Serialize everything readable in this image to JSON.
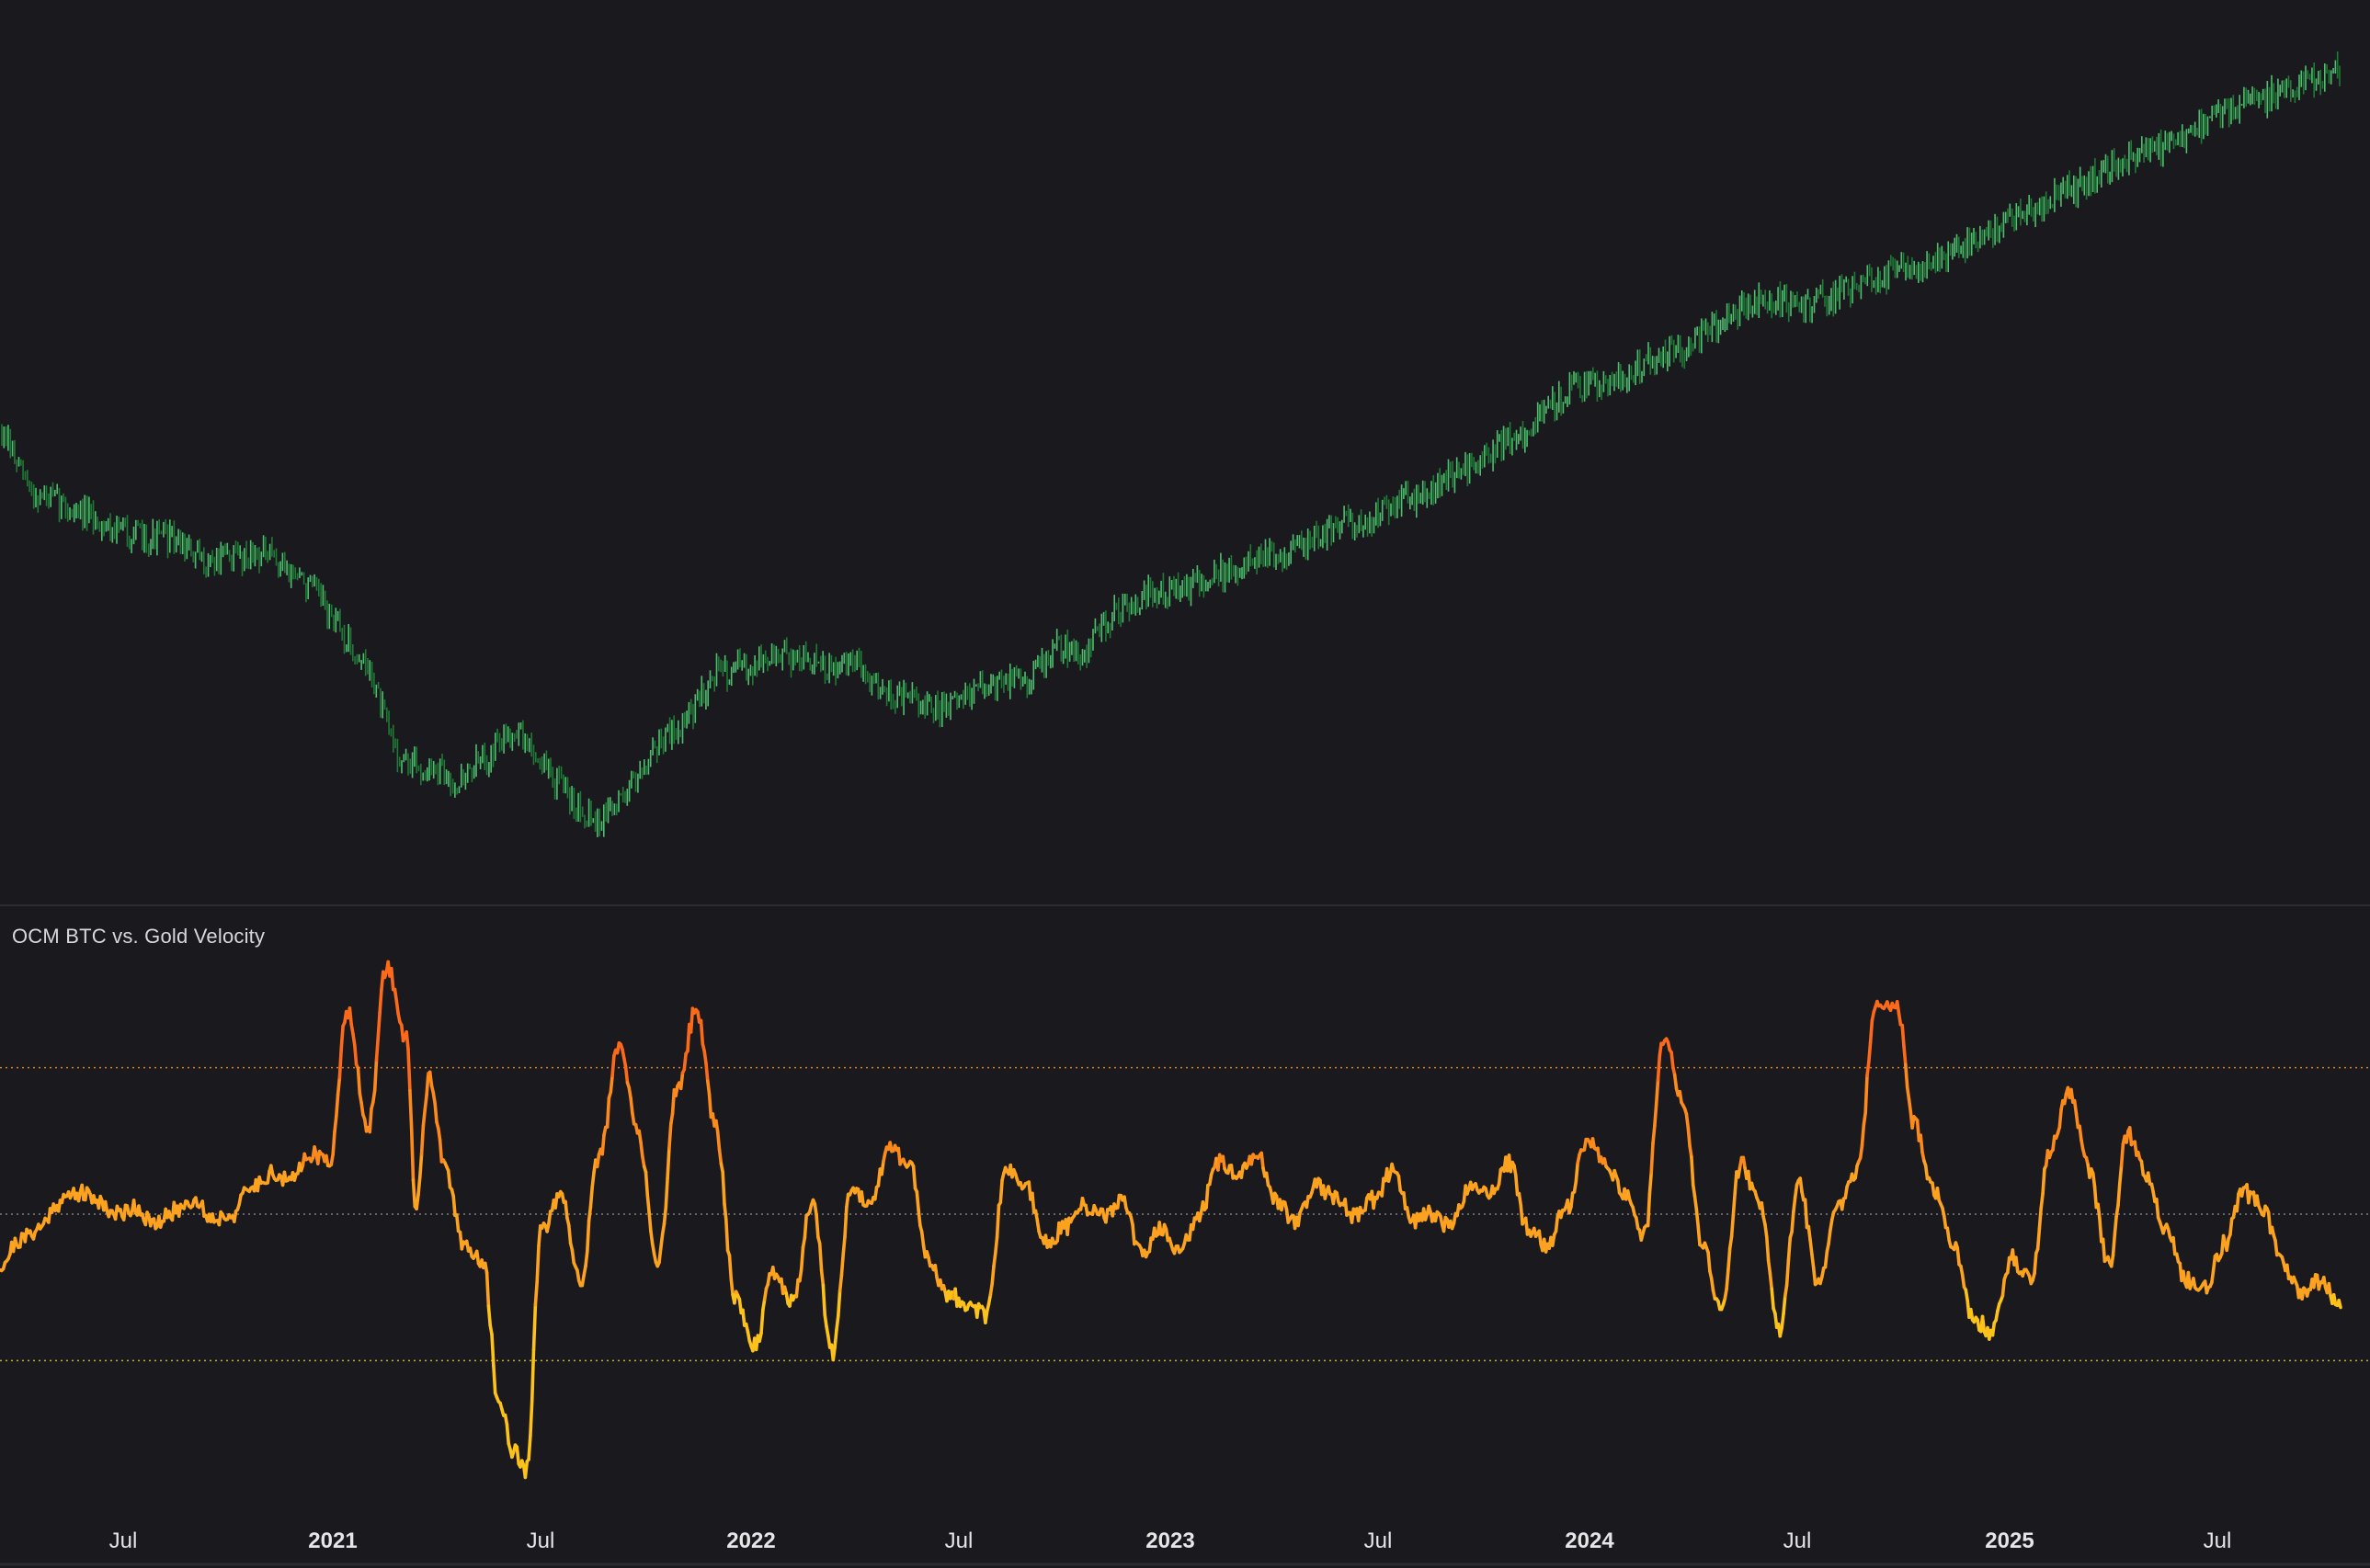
{
  "indicator": {
    "title": "OCM BTC vs. Gold Velocity"
  },
  "colors": {
    "background": "#1a1a1e",
    "price_up": "#4fbf6f",
    "price_down": "#1f7a35",
    "velocity_high": "#ff6a1a",
    "velocity_mid": "#ffa21f",
    "velocity_low": "#ffc21a",
    "upper_band": "#e88a2a",
    "mid_band": "#8a8a8e",
    "lower_band": "#d9c23a",
    "axis_text": "#e6e6e9",
    "pane_divider": "#2c2c31"
  },
  "chart_data": [
    {
      "type": "line",
      "title": "",
      "series": [
        {
          "values": [
            [
              0.0,
              0.7
            ],
            [
              0.02,
              0.58
            ],
            [
              0.04,
              0.56
            ],
            [
              0.06,
              0.53
            ],
            [
              0.08,
              0.51
            ],
            [
              0.1,
              0.49
            ],
            [
              0.12,
              0.49
            ],
            [
              0.14,
              0.44
            ],
            [
              0.16,
              0.45
            ],
            [
              0.18,
              0.46
            ],
            [
              0.2,
              0.43
            ],
            [
              0.22,
              0.38
            ],
            [
              0.24,
              0.29
            ],
            [
              0.26,
              0.21
            ],
            [
              0.27,
              0.11
            ],
            [
              0.28,
              0.04
            ],
            [
              0.3,
              0.02
            ],
            [
              0.32,
              0.0
            ],
            [
              0.34,
              0.05
            ],
            [
              0.36,
              0.11
            ],
            [
              0.38,
              0.03
            ],
            [
              0.4,
              -0.04
            ],
            [
              0.42,
              -0.08
            ],
            [
              0.44,
              -0.01
            ],
            [
              0.46,
              0.08
            ],
            [
              0.48,
              0.12
            ],
            [
              0.5,
              0.22
            ],
            [
              0.52,
              0.23
            ],
            [
              0.54,
              0.25
            ],
            [
              0.56,
              0.25
            ],
            [
              0.58,
              0.22
            ],
            [
              0.6,
              0.24
            ],
            [
              0.62,
              0.18
            ],
            [
              0.64,
              0.16
            ],
            [
              0.66,
              0.14
            ],
            [
              0.68,
              0.18
            ],
            [
              0.7,
              0.2
            ],
            [
              0.72,
              0.21
            ],
            [
              0.74,
              0.27
            ],
            [
              0.76,
              0.26
            ],
            [
              0.78,
              0.34
            ],
            [
              0.8,
              0.37
            ],
            [
              0.82,
              0.38
            ],
            [
              0.84,
              0.4
            ],
            [
              0.86,
              0.42
            ],
            [
              0.88,
              0.45
            ],
            [
              0.9,
              0.46
            ],
            [
              0.92,
              0.48
            ],
            [
              0.94,
              0.52
            ],
            [
              0.96,
              0.53
            ],
            [
              0.98,
              0.56
            ],
            [
              1.0,
              0.58
            ],
            [
              1.02,
              0.62
            ],
            [
              1.04,
              0.65
            ],
            [
              1.06,
              0.69
            ],
            [
              1.08,
              0.73
            ],
            [
              1.1,
              0.79
            ],
            [
              1.12,
              0.8
            ],
            [
              1.14,
              0.82
            ],
            [
              1.16,
              0.85
            ],
            [
              1.18,
              0.87
            ],
            [
              1.2,
              0.91
            ],
            [
              1.22,
              0.95
            ],
            [
              1.24,
              0.97
            ],
            [
              1.26,
              0.96
            ],
            [
              1.28,
              0.97
            ],
            [
              1.3,
              0.99
            ],
            [
              1.32,
              1.02
            ],
            [
              1.34,
              1.04
            ],
            [
              1.36,
              1.05
            ],
            [
              1.38,
              1.08
            ],
            [
              1.4,
              1.11
            ],
            [
              1.42,
              1.14
            ],
            [
              1.44,
              1.18
            ],
            [
              1.46,
              1.2
            ],
            [
              1.48,
              1.23
            ],
            [
              1.5,
              1.26
            ],
            [
              1.52,
              1.28
            ],
            [
              1.54,
              1.31
            ],
            [
              1.56,
              1.35
            ],
            [
              1.58,
              1.37
            ],
            [
              1.6,
              1.39
            ],
            [
              1.62,
              1.41
            ],
            [
              1.64,
              1.43
            ]
          ]
        }
      ]
    },
    {
      "type": "line",
      "title": "OCM BTC vs. Gold Velocity",
      "x_tick_labels": [
        "Jul",
        "2021",
        "Jul",
        "2022",
        "Jul",
        "2023",
        "Jul",
        "2024",
        "Jul",
        "2025",
        "Jul"
      ],
      "x_tick_bold": [
        false,
        true,
        false,
        true,
        false,
        true,
        false,
        true,
        false,
        true,
        false
      ],
      "reference_lines": [
        {
          "name": "upper",
          "value": 1.0
        },
        {
          "name": "mid",
          "value": 0.0
        },
        {
          "name": "lower",
          "value": -1.0
        }
      ],
      "ylim": [
        -1.75,
        1.7
      ],
      "series": [
        {
          "values": [
            [
              0.0,
              -0.35
            ],
            [
              0.01,
              -0.18
            ],
            [
              0.02,
              -0.1
            ],
            [
              0.03,
              0.08
            ],
            [
              0.04,
              0.15
            ],
            [
              0.05,
              0.1
            ],
            [
              0.06,
              0.0
            ],
            [
              0.07,
              0.05
            ],
            [
              0.08,
              -0.08
            ],
            [
              0.09,
              0.02
            ],
            [
              0.1,
              0.1
            ],
            [
              0.11,
              -0.03
            ],
            [
              0.12,
              0.0
            ],
            [
              0.13,
              0.18
            ],
            [
              0.14,
              0.28
            ],
            [
              0.15,
              0.22
            ],
            [
              0.16,
              0.42
            ],
            [
              0.17,
              0.35
            ],
            [
              0.18,
              1.4
            ],
            [
              0.19,
              0.55
            ],
            [
              0.2,
              1.7
            ],
            [
              0.21,
              1.2
            ],
            [
              0.215,
              0.05
            ],
            [
              0.222,
              0.95
            ],
            [
              0.23,
              0.3
            ],
            [
              0.24,
              -0.2
            ],
            [
              0.25,
              -0.35
            ],
            [
              0.258,
              -1.3
            ],
            [
              0.266,
              -1.62
            ],
            [
              0.272,
              -1.75
            ],
            [
              0.28,
              -0.1
            ],
            [
              0.29,
              0.1
            ],
            [
              0.3,
              -0.45
            ],
            [
              0.31,
              0.4
            ],
            [
              0.32,
              1.15
            ],
            [
              0.33,
              0.55
            ],
            [
              0.34,
              -0.35
            ],
            [
              0.35,
              0.85
            ],
            [
              0.36,
              1.4
            ],
            [
              0.37,
              0.6
            ],
            [
              0.38,
              -0.55
            ],
            [
              0.39,
              -0.9
            ],
            [
              0.4,
              -0.4
            ],
            [
              0.41,
              -0.6
            ],
            [
              0.42,
              0.1
            ],
            [
              0.43,
              -0.95
            ],
            [
              0.44,
              0.15
            ],
            [
              0.45,
              0.1
            ],
            [
              0.46,
              0.45
            ],
            [
              0.47,
              0.35
            ],
            [
              0.48,
              -0.3
            ],
            [
              0.49,
              -0.55
            ],
            [
              0.5,
              -0.6
            ],
            [
              0.51,
              -0.7
            ],
            [
              0.52,
              0.3
            ],
            [
              0.53,
              0.22
            ],
            [
              0.54,
              -0.2
            ],
            [
              0.55,
              -0.1
            ],
            [
              0.56,
              0.05
            ],
            [
              0.57,
              -0.02
            ],
            [
              0.58,
              0.1
            ],
            [
              0.59,
              -0.28
            ],
            [
              0.6,
              -0.1
            ],
            [
              0.61,
              -0.25
            ],
            [
              0.62,
              0.0
            ],
            [
              0.63,
              0.35
            ],
            [
              0.64,
              0.25
            ],
            [
              0.65,
              0.4
            ],
            [
              0.66,
              0.1
            ],
            [
              0.67,
              -0.05
            ],
            [
              0.68,
              0.22
            ],
            [
              0.69,
              0.1
            ],
            [
              0.7,
              0.0
            ],
            [
              0.71,
              0.1
            ],
            [
              0.72,
              0.3
            ],
            [
              0.73,
              -0.05
            ],
            [
              0.74,
              0.0
            ],
            [
              0.75,
              -0.08
            ],
            [
              0.76,
              0.2
            ],
            [
              0.77,
              0.15
            ],
            [
              0.78,
              0.35
            ],
            [
              0.79,
              -0.1
            ],
            [
              0.8,
              -0.22
            ],
            [
              0.81,
              0.05
            ],
            [
              0.82,
              0.5
            ],
            [
              0.83,
              0.35
            ],
            [
              0.84,
              0.15
            ],
            [
              0.85,
              -0.15
            ],
            [
              0.86,
              1.2
            ],
            [
              0.87,
              0.8
            ],
            [
              0.88,
              -0.2
            ],
            [
              0.89,
              -0.65
            ],
            [
              0.9,
              0.35
            ],
            [
              0.91,
              0.05
            ],
            [
              0.92,
              -0.8
            ],
            [
              0.93,
              0.22
            ],
            [
              0.94,
              -0.5
            ],
            [
              0.95,
              0.05
            ],
            [
              0.96,
              0.3
            ],
            [
              0.97,
              1.4
            ],
            [
              0.98,
              1.45
            ],
            [
              0.99,
              0.6
            ],
            [
              1.0,
              0.15
            ],
            [
              1.01,
              -0.2
            ],
            [
              1.02,
              -0.72
            ],
            [
              1.03,
              -0.8
            ],
            [
              1.04,
              -0.3
            ],
            [
              1.05,
              -0.45
            ],
            [
              1.06,
              0.45
            ],
            [
              1.07,
              0.85
            ],
            [
              1.08,
              0.3
            ],
            [
              1.09,
              -0.35
            ],
            [
              1.1,
              0.55
            ],
            [
              1.11,
              0.25
            ],
            [
              1.12,
              -0.1
            ],
            [
              1.13,
              -0.45
            ],
            [
              1.14,
              -0.5
            ],
            [
              1.15,
              -0.2
            ],
            [
              1.16,
              0.15
            ],
            [
              1.17,
              0.05
            ],
            [
              1.18,
              -0.35
            ],
            [
              1.19,
              -0.55
            ],
            [
              1.2,
              -0.45
            ],
            [
              1.21,
              -0.65
            ]
          ]
        }
      ]
    }
  ]
}
